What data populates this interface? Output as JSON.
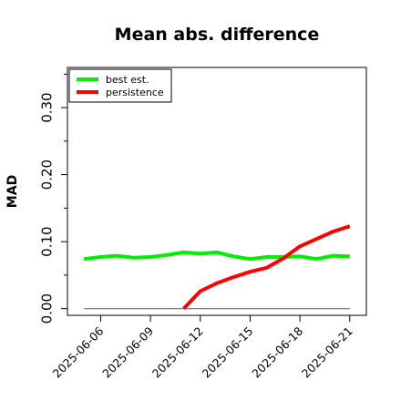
{
  "chart_data": {
    "type": "line",
    "title": "Mean abs. difference",
    "ylabel": "MAD",
    "xlabel": "",
    "x_range": [
      "2025-06-04",
      "2025-06-22"
    ],
    "ylim": [
      -0.01,
      0.36
    ],
    "yticks": [
      {
        "value": 0.0,
        "label": "0.00"
      },
      {
        "value": 0.1,
        "label": "0.10"
      },
      {
        "value": 0.2,
        "label": "0.20"
      },
      {
        "value": 0.3,
        "label": "0.30"
      }
    ],
    "yticks_minor": [
      0.05,
      0.15,
      0.25,
      0.35
    ],
    "xticks": [
      {
        "value": "2025-06-06",
        "label": "2025-06-06"
      },
      {
        "value": "2025-06-09",
        "label": "2025-06-09"
      },
      {
        "value": "2025-06-12",
        "label": "2025-06-12"
      },
      {
        "value": "2025-06-15",
        "label": "2025-06-15"
      },
      {
        "value": "2025-06-18",
        "label": "2025-06-18"
      },
      {
        "value": "2025-06-21",
        "label": "2025-06-21"
      }
    ],
    "grid": false,
    "legend": "top-left",
    "series": [
      {
        "name": "best est.",
        "color": "#00ee00",
        "x": [
          "2025-06-05",
          "2025-06-06",
          "2025-06-07",
          "2025-06-08",
          "2025-06-09",
          "2025-06-10",
          "2025-06-11",
          "2025-06-12",
          "2025-06-13",
          "2025-06-14",
          "2025-06-15",
          "2025-06-16",
          "2025-06-17",
          "2025-06-18",
          "2025-06-19",
          "2025-06-20",
          "2025-06-21"
        ],
        "values": [
          0.074,
          0.077,
          0.079,
          0.076,
          0.077,
          0.08,
          0.084,
          0.082,
          0.084,
          0.078,
          0.074,
          0.077,
          0.077,
          0.078,
          0.074,
          0.079,
          0.078
        ]
      },
      {
        "name": "persistence",
        "color": "#ff0000",
        "x": [
          "2025-06-11",
          "2025-06-12",
          "2025-06-13",
          "2025-06-14",
          "2025-06-15",
          "2025-06-16",
          "2025-06-17",
          "2025-06-18",
          "2025-06-19",
          "2025-06-20",
          "2025-06-21"
        ],
        "values": [
          0.0,
          0.026,
          0.038,
          0.047,
          0.055,
          0.061,
          0.075,
          0.093,
          0.104,
          0.115,
          0.123
        ]
      },
      {
        "name": "",
        "color": "#7f7f7f",
        "x": [
          "2025-06-05",
          "2025-06-21"
        ],
        "values": [
          0.0,
          0.0
        ]
      }
    ]
  }
}
